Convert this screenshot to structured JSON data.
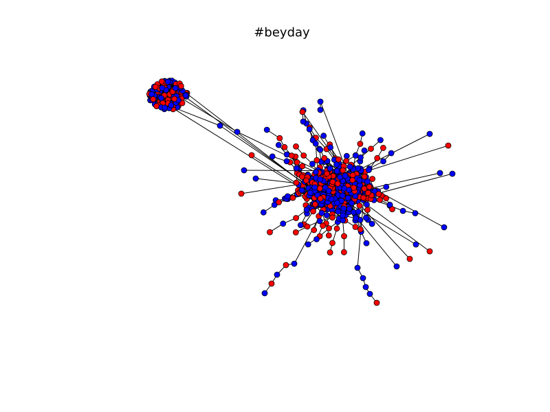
{
  "title": "#beyday",
  "colors": {
    "red_node": "#ff0000",
    "blue_node": "#0000ff",
    "edge": "#000000",
    "background": "#ffffff"
  },
  "legend": null
}
